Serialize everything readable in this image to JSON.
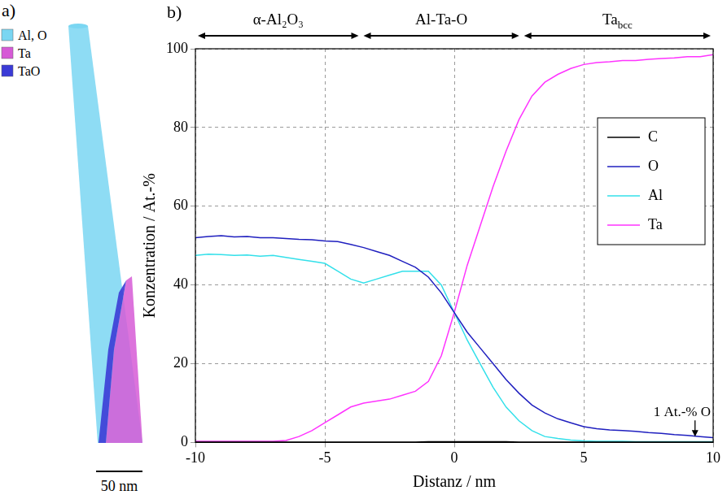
{
  "panel_a": {
    "label": "a)",
    "legend": [
      {
        "name": "Al, O",
        "color": "#7ad6f2"
      },
      {
        "name": "Ta",
        "color": "#d65ad6"
      },
      {
        "name": "TaO",
        "color": "#3b3bd6"
      }
    ],
    "scale_bar": "50 nm"
  },
  "chart_data": {
    "type": "line",
    "panel_label": "b)",
    "x_label": "Distanz / nm",
    "y_label": "Konzentration / At.-%",
    "xlim": [
      -10,
      10
    ],
    "xticks": [
      -10,
      -5,
      0,
      5,
      10
    ],
    "ylim": [
      0,
      100
    ],
    "yticks": [
      0,
      20,
      40,
      60,
      80,
      100
    ],
    "grid": true,
    "legend": "upper right",
    "regions": [
      {
        "text": "α-Al₂O₃",
        "start": -10,
        "end": -3.6
      },
      {
        "text": "Al-Ta-O",
        "start": -3.6,
        "end": 2.6
      },
      {
        "text": "Ta",
        "subscript": "bcc",
        "start": 2.6,
        "end": 10
      }
    ],
    "annotations": [
      {
        "text": "1 At.-% O",
        "x": 9.3,
        "y": 1.5
      }
    ],
    "x": [
      -10,
      -9.5,
      -9,
      -8.5,
      -8,
      -7.5,
      -7,
      -6.5,
      -6,
      -5.5,
      -5,
      -4.5,
      -4,
      -3.5,
      -3,
      -2.5,
      -2,
      -1.5,
      -1,
      -0.5,
      0,
      0.5,
      1,
      1.5,
      2,
      2.5,
      3,
      3.5,
      4,
      4.5,
      5,
      5.5,
      6,
      6.5,
      7,
      7.5,
      8,
      8.5,
      9,
      9.5,
      10
    ],
    "series": [
      {
        "name": "C",
        "color": "#000000",
        "values": [
          0.1,
          0.1,
          0.1,
          0.1,
          0.1,
          0.1,
          0.1,
          0.1,
          0.1,
          0.1,
          0.1,
          0.1,
          0.1,
          0.1,
          0.1,
          0.1,
          0.1,
          0.1,
          0.2,
          0.2,
          0.2,
          0.2,
          0.2,
          0.2,
          0.2,
          0.1,
          0.1,
          0.1,
          0.1,
          0.1,
          0.1,
          0.1,
          0.1,
          0.1,
          0.1,
          0.1,
          0.1,
          0.1,
          0.1,
          0.1,
          0.1
        ]
      },
      {
        "name": "O",
        "color": "#1f1fbf",
        "values": [
          52,
          52.3,
          52.5,
          52.2,
          52.3,
          52,
          52,
          51.8,
          51.6,
          51.5,
          51.2,
          51,
          50.3,
          49.5,
          48.5,
          47.5,
          46,
          44.5,
          42,
          38,
          33,
          28,
          24,
          20,
          16,
          12.5,
          9.5,
          7.5,
          6,
          5,
          4,
          3.5,
          3.2,
          3,
          2.8,
          2.5,
          2.3,
          2,
          1.8,
          1.5,
          1.2
        ]
      },
      {
        "name": "Al",
        "color": "#33e0ea",
        "values": [
          47.5,
          47.8,
          47.7,
          47.5,
          47.6,
          47.3,
          47.5,
          47,
          46.5,
          46,
          45.5,
          43.5,
          41.5,
          40.5,
          41.5,
          42.5,
          43.5,
          43.5,
          43.5,
          40,
          33,
          26,
          20,
          14,
          9,
          5.5,
          3,
          1.5,
          1,
          0.6,
          0.4,
          0.3,
          0.3,
          0.3,
          0.2,
          0.2,
          0.2,
          0.2,
          0.2,
          0.2,
          0.2
        ]
      },
      {
        "name": "Ta",
        "color": "#ff33ff",
        "values": [
          0.3,
          0.3,
          0.3,
          0.3,
          0.3,
          0.3,
          0.3,
          0.5,
          1.5,
          3,
          5,
          7,
          9,
          10,
          10.5,
          11,
          12,
          13,
          15.5,
          22,
          33,
          45,
          55,
          65,
          74,
          82,
          88,
          91.5,
          93.5,
          95,
          96,
          96.5,
          96.7,
          97,
          97,
          97.3,
          97.5,
          97.7,
          98,
          98,
          98.5
        ]
      }
    ]
  }
}
